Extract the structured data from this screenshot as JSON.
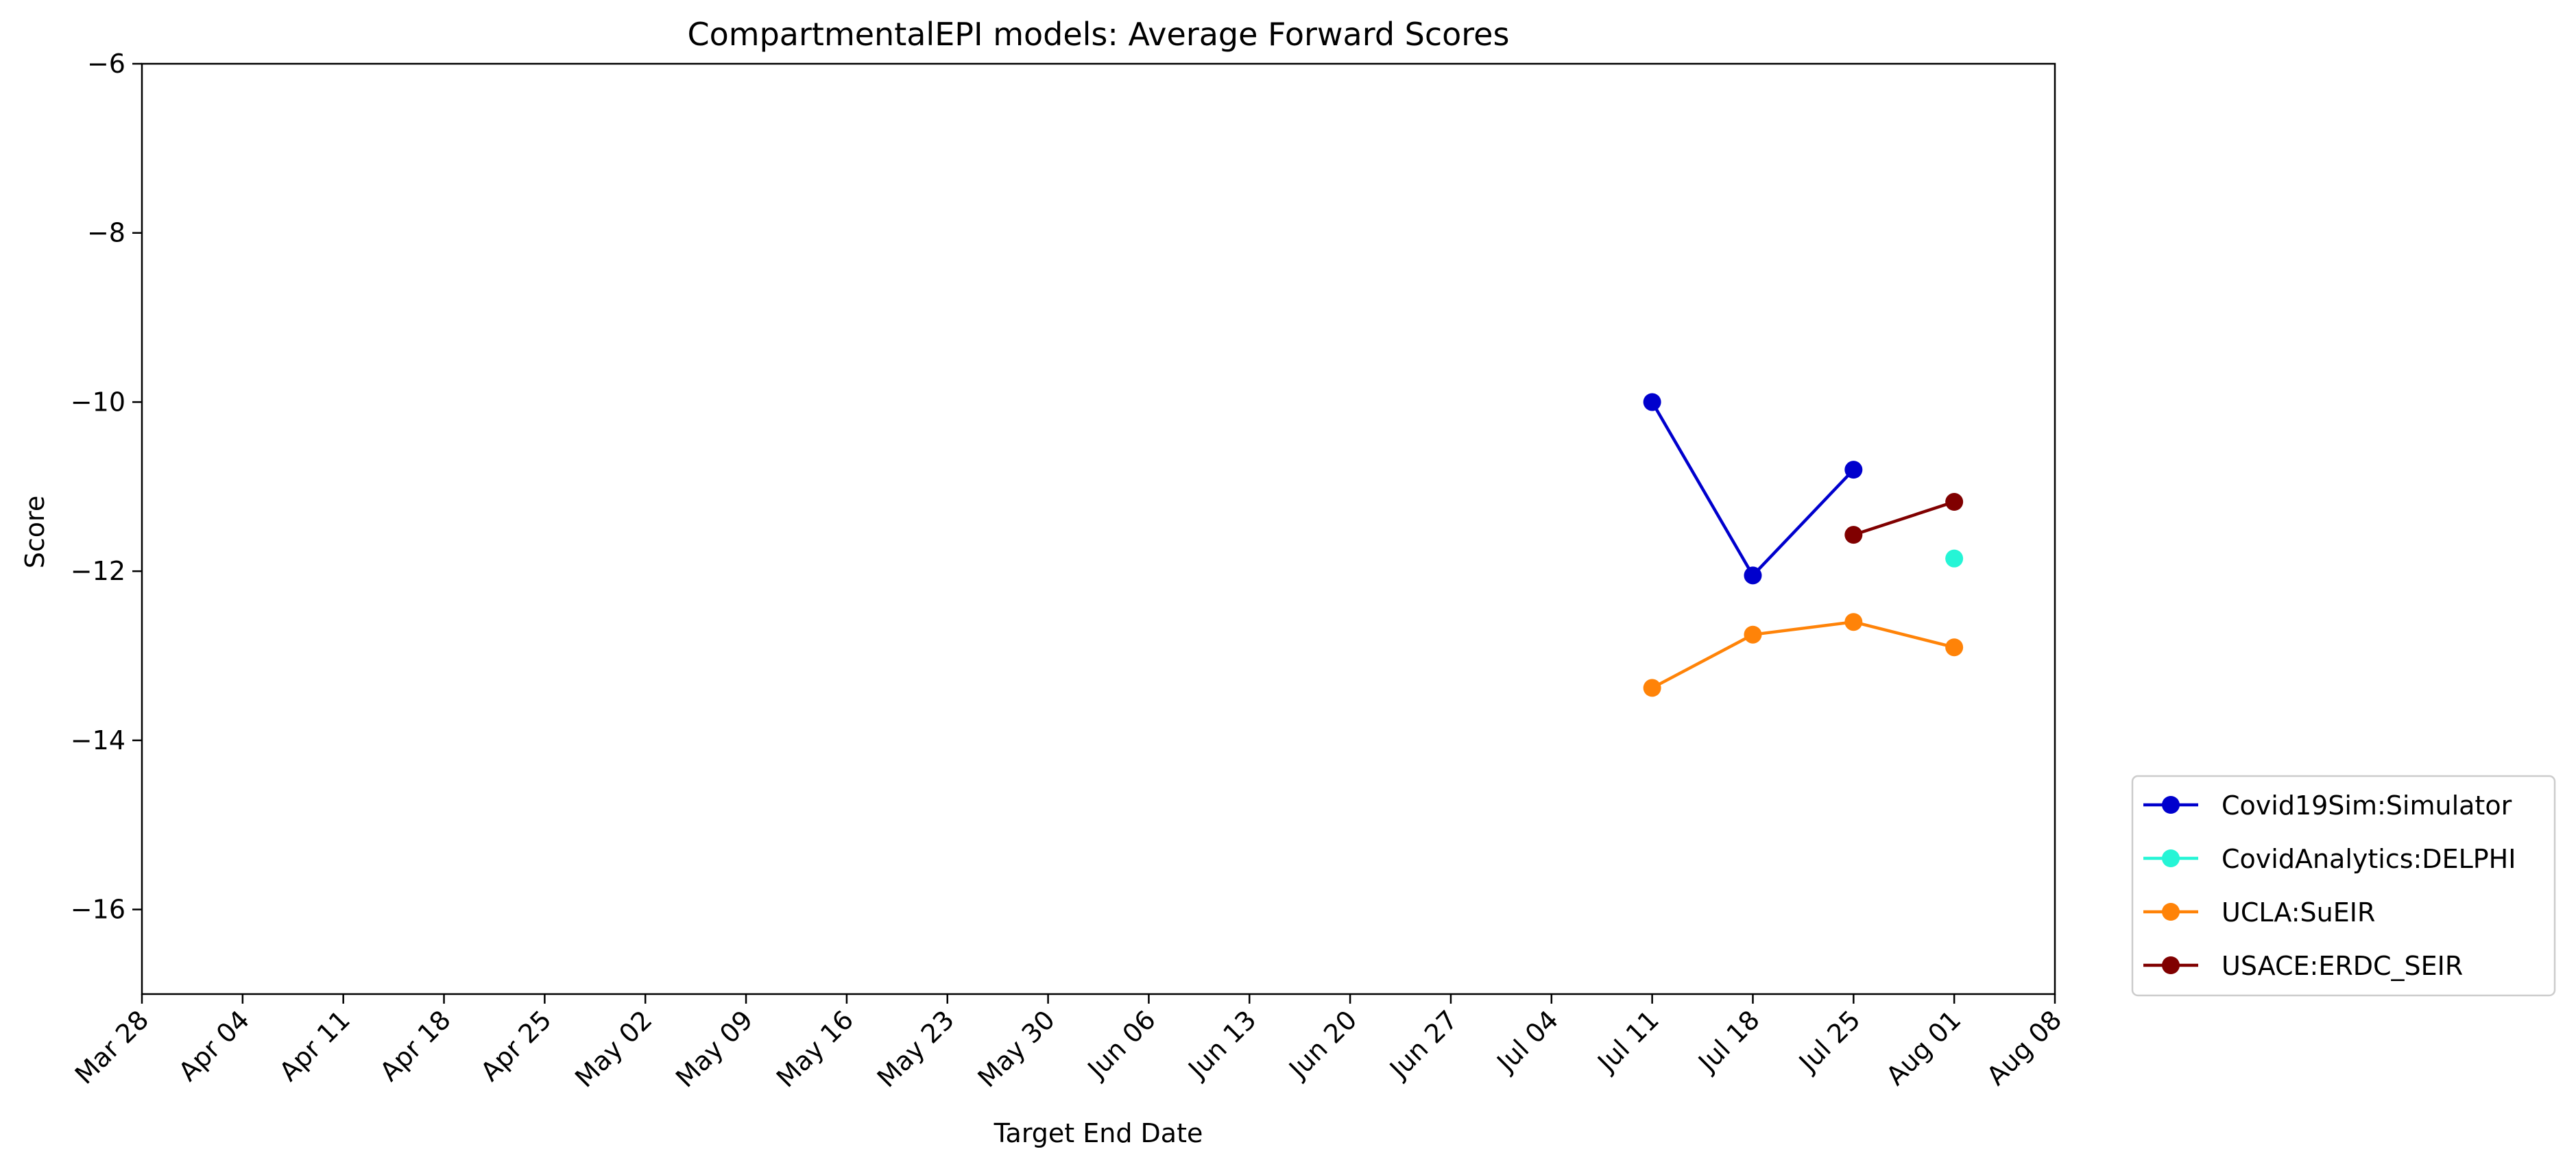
{
  "chart_data": {
    "type": "line",
    "title": "CompartmentalEPI models: Average Forward Scores",
    "xlabel": "Target End Date",
    "ylabel": "Score",
    "ylim": [
      -17,
      -6
    ],
    "xlim": [
      "2020-03-28",
      "2020-08-08"
    ],
    "x_ticks": [
      "2020-03-28",
      "2020-04-04",
      "2020-04-11",
      "2020-04-18",
      "2020-04-25",
      "2020-05-02",
      "2020-05-09",
      "2020-05-16",
      "2020-05-23",
      "2020-05-30",
      "2020-06-06",
      "2020-06-13",
      "2020-06-20",
      "2020-06-27",
      "2020-07-04",
      "2020-07-11",
      "2020-07-18",
      "2020-07-25",
      "2020-08-01",
      "2020-08-08"
    ],
    "x_tick_labels": [
      "Mar 28",
      "Apr 04",
      "Apr 11",
      "Apr 18",
      "Apr 25",
      "May 02",
      "May 09",
      "May 16",
      "May 23",
      "May 30",
      "Jun 06",
      "Jun 13",
      "Jun 20",
      "Jun 27",
      "Jul 04",
      "Jul 11",
      "Jul 18",
      "Jul 25",
      "Aug 01",
      "Aug 08"
    ],
    "y_ticks": [
      -16,
      -14,
      -12,
      -10,
      -8,
      -6
    ],
    "y_tick_labels": [
      "−16",
      "−14",
      "−12",
      "−10",
      "−8",
      "−6"
    ],
    "grid": false,
    "legend_position": "outside-right-bottom",
    "series": [
      {
        "name": "Covid19Sim:Simulator",
        "color": "#0000CD",
        "points": [
          {
            "x": "2020-07-11",
            "y": -10.0
          },
          {
            "x": "2020-07-18",
            "y": -12.05
          },
          {
            "x": "2020-07-25",
            "y": -10.8
          }
        ]
      },
      {
        "name": "CovidAnalytics:DELPHI",
        "color": "#25F5D6",
        "points": [
          {
            "x": "2020-08-01",
            "y": -11.85
          }
        ]
      },
      {
        "name": "UCLA:SuEIR",
        "color": "#FF8308",
        "points": [
          {
            "x": "2020-07-11",
            "y": -13.38
          },
          {
            "x": "2020-07-18",
            "y": -12.75
          },
          {
            "x": "2020-07-25",
            "y": -12.6
          },
          {
            "x": "2020-08-01",
            "y": -12.9
          }
        ]
      },
      {
        "name": "USACE:ERDC_SEIR",
        "color": "#800000",
        "points": [
          {
            "x": "2020-07-25",
            "y": -11.57
          },
          {
            "x": "2020-08-01",
            "y": -11.18
          }
        ]
      }
    ]
  }
}
